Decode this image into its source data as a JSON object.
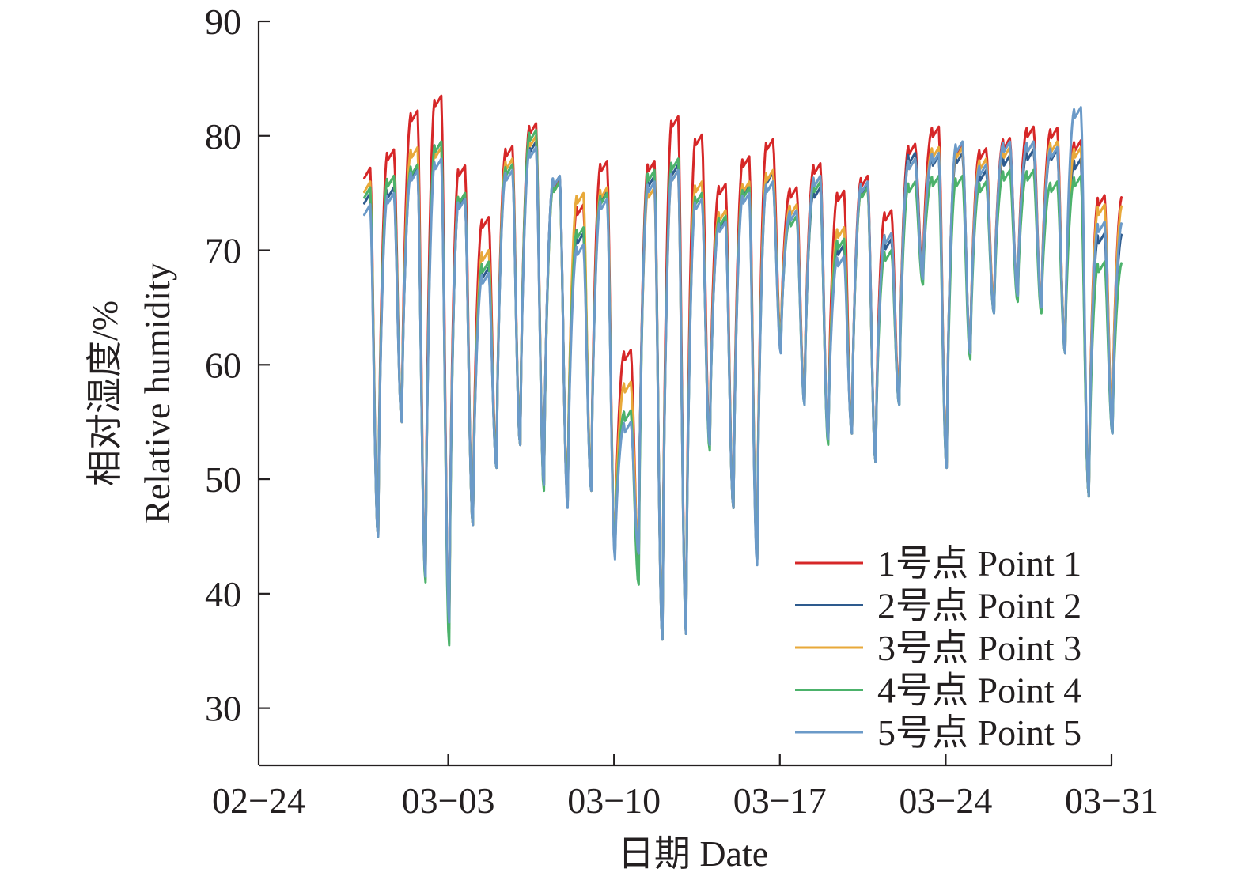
{
  "chart_data": {
    "type": "line",
    "xlabel": "日期 Date",
    "ylabel_line1": "相对湿度/%",
    "ylabel_line2": "Relative humidity",
    "x_ticks": [
      "02-24",
      "03-03",
      "03-10",
      "03-17",
      "03-24",
      "03-31"
    ],
    "x_range": [
      "02-24",
      "03-31"
    ],
    "y_ticks": [
      30,
      40,
      50,
      60,
      70,
      80,
      90
    ],
    "ylim": [
      25,
      90
    ],
    "grid": false,
    "legend_position": "bottom-right",
    "series": [
      {
        "name": "1号点 Point 1",
        "color": "#d62728",
        "x": [
          "02-28",
          "02-29",
          "03-01",
          "03-02",
          "03-03",
          "03-04",
          "03-05",
          "03-06",
          "03-07",
          "03-08",
          "03-09",
          "03-10",
          "03-11",
          "03-12",
          "03-13",
          "03-14",
          "03-15",
          "03-16",
          "03-17",
          "03-18",
          "03-19",
          "03-20",
          "03-21",
          "03-22",
          "03-23",
          "03-24",
          "03-25",
          "03-26",
          "03-27",
          "03-28",
          "03-29",
          "03-30"
        ],
        "peak": [
          77.2,
          78.8,
          82.2,
          83.5,
          77.4,
          72.9,
          79.1,
          81.1,
          76.3,
          74.0,
          77.8,
          61.3,
          77.8,
          81.7,
          80.1,
          75.8,
          78.2,
          79.7,
          75.5,
          77.6,
          75.2,
          76.5,
          73.5,
          79.3,
          80.8,
          79.3,
          78.9,
          79.8,
          80.8,
          80.7,
          79.6,
          74.8
        ],
        "trough": [
          45.0,
          55.0,
          41.3,
          37.0,
          46.0,
          51.0,
          53.0,
          49.5,
          48.0,
          49.0,
          43.5,
          43.0,
          36.0,
          36.5,
          53.0,
          47.5,
          43.0,
          62.0,
          57.0,
          53.5,
          54.0,
          51.5,
          57.0,
          68.0,
          51.0,
          61.0,
          65.0,
          66.0,
          65.0,
          61.0,
          48.5,
          55.0
        ]
      },
      {
        "name": "2号点 Point 2",
        "color": "#2e5b8e",
        "x": [
          "02-28",
          "02-29",
          "03-01",
          "03-02",
          "03-03",
          "03-04",
          "03-05",
          "03-06",
          "03-07",
          "03-08",
          "03-09",
          "03-10",
          "03-11",
          "03-12",
          "03-13",
          "03-14",
          "03-15",
          "03-16",
          "03-17",
          "03-18",
          "03-19",
          "03-20",
          "03-21",
          "03-22",
          "03-23",
          "03-24",
          "03-25",
          "03-26",
          "03-27",
          "03-28",
          "03-29",
          "03-30"
        ],
        "peak": [
          75.0,
          75.5,
          77.2,
          79.5,
          74.6,
          68.5,
          77.5,
          79.5,
          76.5,
          71.5,
          75.2,
          56.0,
          76.5,
          77.5,
          75.0,
          72.8,
          75.8,
          76.8,
          73.5,
          75.5,
          70.5,
          75.8,
          71.0,
          78.5,
          78.3,
          78.5,
          77.0,
          78.3,
          78.8,
          78.8,
          78.0,
          71.5
        ],
        "trough": [
          45.0,
          55.0,
          41.5,
          37.5,
          46.0,
          51.0,
          53.0,
          49.5,
          48.0,
          49.0,
          43.5,
          43.5,
          36.5,
          37.0,
          53.0,
          47.5,
          43.0,
          61.5,
          57.0,
          53.5,
          54.0,
          51.5,
          56.5,
          67.5,
          51.5,
          61.0,
          64.5,
          66.0,
          65.0,
          61.5,
          48.5,
          54.0
        ]
      },
      {
        "name": "3号点 Point 3",
        "color": "#e8a93a",
        "x": [
          "02-28",
          "02-29",
          "03-01",
          "03-02",
          "03-03",
          "03-04",
          "03-05",
          "03-06",
          "03-07",
          "03-08",
          "03-09",
          "03-10",
          "03-11",
          "03-12",
          "03-13",
          "03-14",
          "03-15",
          "03-16",
          "03-17",
          "03-18",
          "03-19",
          "03-20",
          "03-21",
          "03-22",
          "03-23",
          "03-24",
          "03-25",
          "03-26",
          "03-27",
          "03-28",
          "03-29",
          "03-30"
        ],
        "peak": [
          76.0,
          76.5,
          79.0,
          79.0,
          75.0,
          70.0,
          78.0,
          80.0,
          76.0,
          75.0,
          75.5,
          58.5,
          75.5,
          77.0,
          76.0,
          73.5,
          76.0,
          77.0,
          74.0,
          76.5,
          72.0,
          75.5,
          71.5,
          78.0,
          79.0,
          79.0,
          78.0,
          79.0,
          79.5,
          79.5,
          79.0,
          74.0
        ],
        "trough": [
          45.0,
          55.0,
          41.5,
          37.0,
          46.0,
          51.0,
          53.0,
          49.5,
          48.0,
          49.0,
          44.0,
          43.5,
          37.0,
          37.0,
          53.0,
          47.5,
          43.5,
          62.0,
          57.0,
          53.5,
          54.0,
          51.5,
          57.0,
          67.5,
          51.5,
          61.0,
          65.0,
          66.0,
          65.0,
          61.5,
          48.5,
          55.0
        ]
      },
      {
        "name": "4号点 Point 4",
        "color": "#4cb26b",
        "x": [
          "02-28",
          "02-29",
          "03-01",
          "03-02",
          "03-03",
          "03-04",
          "03-05",
          "03-06",
          "03-07",
          "03-08",
          "03-09",
          "03-10",
          "03-11",
          "03-12",
          "03-13",
          "03-14",
          "03-15",
          "03-16",
          "03-17",
          "03-18",
          "03-19",
          "03-20",
          "03-21",
          "03-22",
          "03-23",
          "03-24",
          "03-25",
          "03-26",
          "03-27",
          "03-28",
          "03-29",
          "03-30"
        ],
        "peak": [
          75.5,
          76.5,
          77.5,
          79.5,
          75.0,
          69.0,
          77.5,
          80.5,
          76.0,
          72.0,
          75.0,
          56.0,
          77.0,
          78.0,
          75.0,
          73.0,
          75.5,
          76.0,
          73.0,
          76.0,
          71.0,
          75.5,
          70.0,
          76.0,
          76.5,
          76.5,
          76.0,
          77.0,
          77.0,
          76.0,
          76.5,
          69.0
        ],
        "trough": [
          45.0,
          55.0,
          41.0,
          35.5,
          46.0,
          51.0,
          53.0,
          49.0,
          48.0,
          49.0,
          43.5,
          40.8,
          36.0,
          36.5,
          52.5,
          47.5,
          43.0,
          61.5,
          56.5,
          53.0,
          54.0,
          51.5,
          56.5,
          67.0,
          51.0,
          60.5,
          64.5,
          65.5,
          64.5,
          61.0,
          48.5,
          54.0
        ]
      },
      {
        "name": "5号点 Point 5",
        "color": "#6b9ac8",
        "x": [
          "02-28",
          "02-29",
          "03-01",
          "03-02",
          "03-03",
          "03-04",
          "03-05",
          "03-06",
          "03-07",
          "03-08",
          "03-09",
          "03-10",
          "03-11",
          "03-12",
          "03-13",
          "03-14",
          "03-15",
          "03-16",
          "03-17",
          "03-18",
          "03-19",
          "03-20",
          "03-21",
          "03-22",
          "03-23",
          "03-24",
          "03-25",
          "03-26",
          "03-27",
          "03-28",
          "03-29",
          "03-30"
        ],
        "peak": [
          74.0,
          75.0,
          77.0,
          78.0,
          74.5,
          68.0,
          77.0,
          79.0,
          76.5,
          70.5,
          74.5,
          55.0,
          76.0,
          77.0,
          74.5,
          72.5,
          75.0,
          76.0,
          73.5,
          76.5,
          69.5,
          76.0,
          71.5,
          78.0,
          78.5,
          79.5,
          77.5,
          79.5,
          79.5,
          79.0,
          82.5,
          72.5
        ],
        "trough": [
          45.0,
          55.0,
          41.5,
          37.5,
          46.0,
          51.0,
          53.0,
          49.5,
          47.5,
          49.0,
          43.0,
          43.5,
          36.0,
          36.5,
          53.0,
          47.5,
          42.5,
          61.0,
          56.5,
          53.5,
          54.0,
          51.5,
          56.5,
          67.5,
          51.0,
          61.0,
          64.5,
          66.0,
          65.0,
          61.0,
          48.5,
          54.0
        ]
      }
    ]
  }
}
